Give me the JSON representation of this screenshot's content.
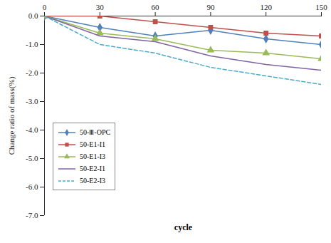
{
  "chart_data": {
    "type": "line",
    "x_label": "cycle",
    "y_label": "Change ratio of mass(%)",
    "x": [
      0,
      30,
      60,
      90,
      120,
      150
    ],
    "xlim": [
      0,
      150
    ],
    "xticks": [
      0,
      30,
      60,
      90,
      120,
      150
    ],
    "ylim": [
      -7,
      0
    ],
    "yticks": [
      {
        "value": -7,
        "label": "-7.0"
      },
      {
        "value": -6,
        "label": "-6.0"
      },
      {
        "value": -5,
        "label": "-5.0"
      },
      {
        "value": -4,
        "label": "-4.0"
      },
      {
        "value": -3,
        "label": "-3.0"
      },
      {
        "value": -2,
        "label": "-2.0"
      },
      {
        "value": -1,
        "label": "-1.0"
      },
      {
        "value": 0,
        "label": "0.0"
      }
    ],
    "grid": false,
    "legend": "left",
    "series": [
      {
        "name": "50-Ⅲ-OPC",
        "color": "#4f81bd",
        "marker": "diamond",
        "line_style": "solid",
        "values": [
          0,
          -0.4,
          -0.7,
          -0.5,
          -0.8,
          -1.0
        ]
      },
      {
        "name": "50-E1-I1",
        "color": "#c0504d",
        "marker": "square",
        "line_style": "solid",
        "values": [
          0,
          0.0,
          -0.2,
          -0.4,
          -0.6,
          -0.7
        ]
      },
      {
        "name": "50-E1-I3",
        "color": "#9bbb59",
        "marker": "triangle",
        "line_style": "solid",
        "values": [
          0,
          -0.6,
          -0.8,
          -1.2,
          -1.3,
          -1.5
        ]
      },
      {
        "name": "50-E2-I1",
        "color": "#8064a2",
        "marker": "none",
        "line_style": "solid",
        "values": [
          0,
          -0.7,
          -0.9,
          -1.4,
          -1.7,
          -1.9
        ]
      },
      {
        "name": "50-E2-I3",
        "color": "#4bacc6",
        "marker": "none",
        "line_style": "dashed",
        "values": [
          0,
          -1.0,
          -1.3,
          -1.8,
          -2.1,
          -2.4
        ]
      }
    ]
  }
}
